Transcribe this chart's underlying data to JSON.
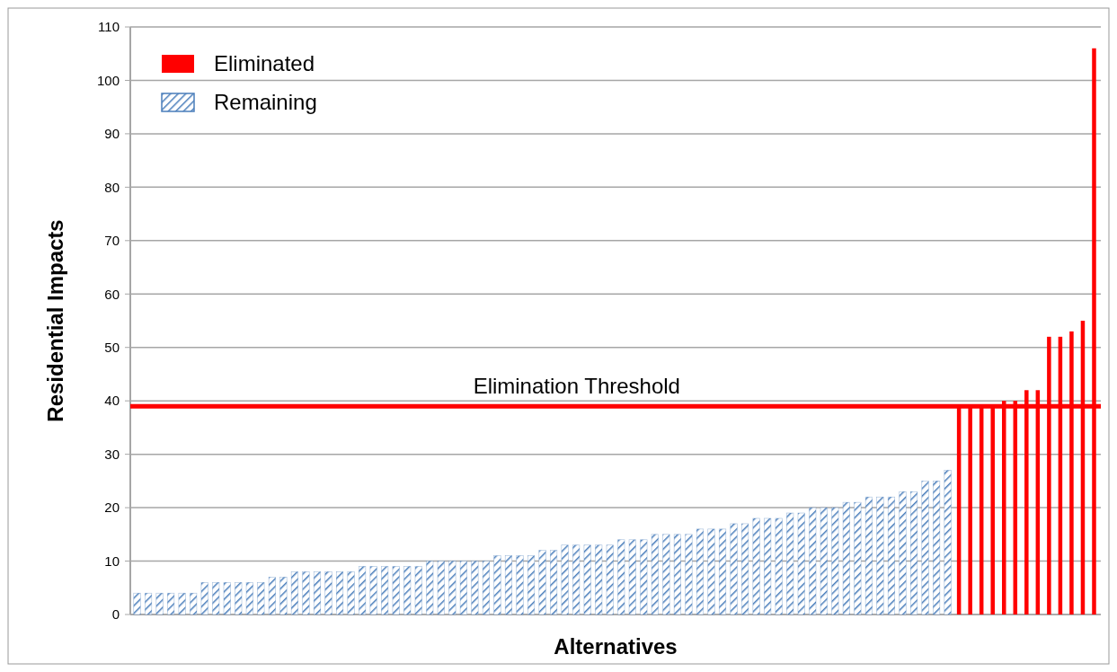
{
  "chart_data": {
    "type": "bar",
    "xlabel": "Alternatives",
    "ylabel": "Residential Impacts",
    "categories": [
      null,
      null,
      null,
      null,
      null,
      null,
      null,
      null,
      null,
      null,
      null,
      null,
      null,
      null,
      null,
      null,
      null,
      null,
      null,
      null,
      null,
      null,
      null,
      null,
      null,
      null,
      null,
      null,
      null,
      null,
      null,
      null,
      null,
      null,
      null,
      null,
      null,
      null,
      null,
      null,
      null,
      null,
      null,
      null,
      null,
      null,
      null,
      null,
      null,
      null,
      null,
      null,
      null,
      null,
      null,
      null,
      null,
      null,
      null,
      null,
      null,
      null,
      null,
      null,
      null,
      null,
      null,
      null,
      null,
      null,
      null,
      null,
      null,
      null,
      null,
      null,
      null,
      null,
      null,
      null,
      null,
      null,
      null,
      null,
      null,
      null
    ],
    "series": [
      {
        "name": "Eliminated",
        "color": "#ff0000",
        "values": [
          null,
          null,
          null,
          null,
          null,
          null,
          null,
          null,
          null,
          null,
          null,
          null,
          null,
          null,
          null,
          null,
          null,
          null,
          null,
          null,
          null,
          null,
          null,
          null,
          null,
          null,
          null,
          null,
          null,
          null,
          null,
          null,
          null,
          null,
          null,
          null,
          null,
          null,
          null,
          null,
          null,
          null,
          null,
          null,
          null,
          null,
          null,
          null,
          null,
          null,
          null,
          null,
          null,
          null,
          null,
          null,
          null,
          null,
          null,
          null,
          null,
          null,
          null,
          null,
          null,
          null,
          null,
          null,
          null,
          null,
          null,
          null,
          null,
          39,
          39,
          39,
          39,
          40,
          40,
          42,
          42,
          52,
          52,
          53,
          55,
          106
        ]
      },
      {
        "name": "Remaining",
        "color": "#4a7ebb",
        "values": [
          4,
          4,
          4,
          4,
          4,
          4,
          6,
          6,
          6,
          6,
          6,
          6,
          7,
          7,
          8,
          8,
          8,
          8,
          8,
          8,
          9,
          9,
          9,
          9,
          9,
          9,
          10,
          10,
          10,
          10,
          10,
          10,
          11,
          11,
          11,
          11,
          12,
          12,
          13,
          13,
          13,
          13,
          13,
          14,
          14,
          14,
          15,
          15,
          15,
          15,
          16,
          16,
          16,
          17,
          17,
          18,
          18,
          18,
          19,
          19,
          20,
          20,
          20,
          21,
          21,
          22,
          22,
          22,
          23,
          23,
          25,
          25,
          27,
          null,
          null,
          null,
          null,
          null,
          null,
          null,
          null,
          null,
          null,
          null,
          null,
          null
        ]
      }
    ],
    "ylim": [
      0,
      110
    ],
    "yticks": [
      0,
      10,
      20,
      30,
      40,
      50,
      60,
      70,
      80,
      90,
      100,
      110
    ],
    "grid": "y",
    "legend": "top left",
    "ref_lines": [
      {
        "axis": "y",
        "value": 39,
        "label": "Elimination Threshold",
        "color": "#ff0000"
      }
    ]
  }
}
